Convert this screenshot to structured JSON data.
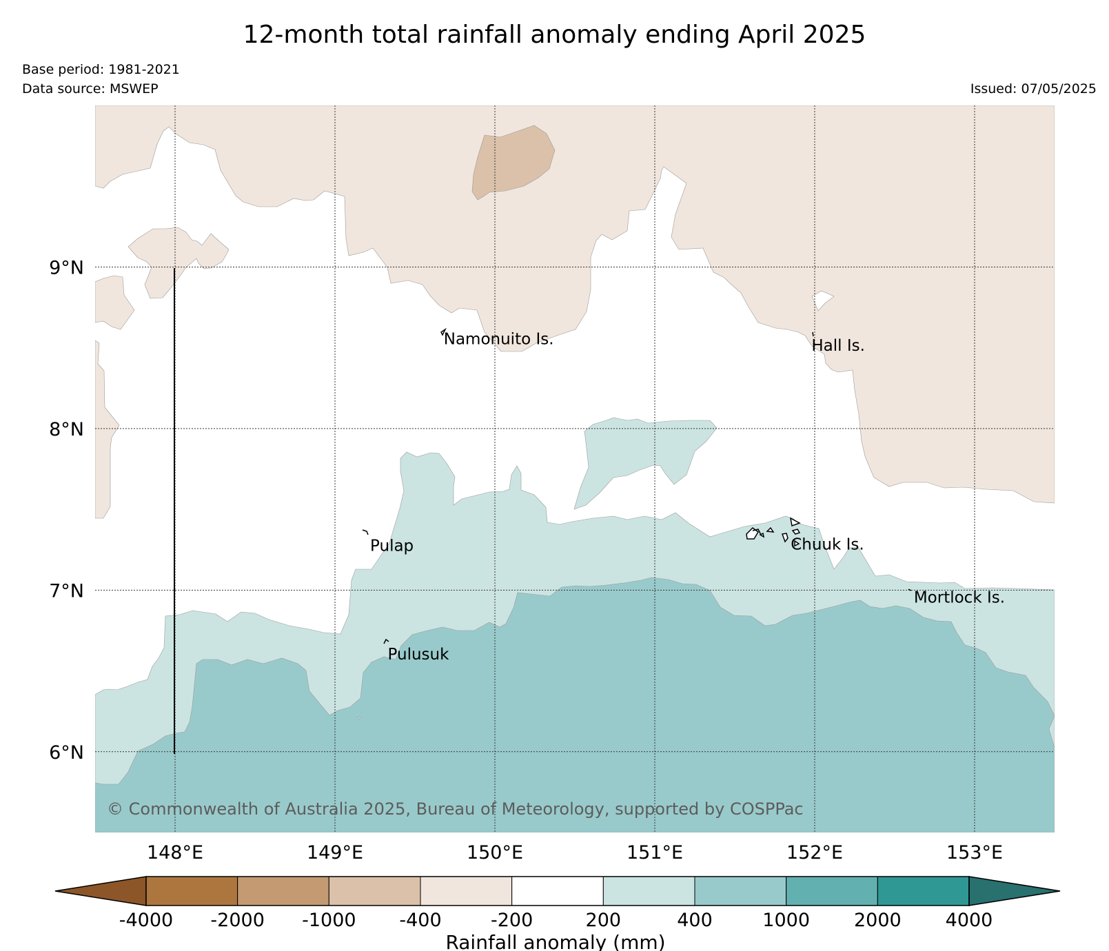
{
  "title": "12-month total rainfall anomaly ending April 2025",
  "base_period": "Base period: 1981-2021",
  "data_source": "Data source: MSWEP",
  "issued": "Issued: 07/05/2025",
  "copyright": "© Commonwealth of Australia 2025, Bureau of Meteorology, supported by COSPPac",
  "map": {
    "lon_range": [
      147.5,
      153.5
    ],
    "lat_range": [
      5.5,
      10.0
    ],
    "lon_ticks": [
      {
        "value": 148,
        "label": "148°E"
      },
      {
        "value": 149,
        "label": "149°E"
      },
      {
        "value": 150,
        "label": "150°E"
      },
      {
        "value": 151,
        "label": "151°E"
      },
      {
        "value": 152,
        "label": "152°E"
      },
      {
        "value": 153,
        "label": "153°E"
      }
    ],
    "lat_ticks": [
      {
        "value": 9,
        "label": "9°N"
      },
      {
        "value": 8,
        "label": "8°N"
      },
      {
        "value": 7,
        "label": "7°N"
      },
      {
        "value": 6,
        "label": "6°N"
      }
    ],
    "grid": true,
    "places": [
      {
        "name": "Namonuito Is.",
        "lon": 149.68,
        "lat": 8.56
      },
      {
        "name": "Hall Is.",
        "lon": 151.98,
        "lat": 8.52
      },
      {
        "name": "Pulap",
        "lon": 149.22,
        "lat": 7.28
      },
      {
        "name": "Chuuk Is.",
        "lon": 151.85,
        "lat": 7.29
      },
      {
        "name": "Mortlock Is.",
        "lon": 152.62,
        "lat": 6.96
      },
      {
        "name": "Pulusuk",
        "lon": 149.33,
        "lat": 6.61
      }
    ]
  },
  "colorbar": {
    "label": "Rainfall anomaly (mm)",
    "ticks": [
      "-4000",
      "-2000",
      "-1000",
      "-400",
      "-200",
      "200",
      "400",
      "1000",
      "2000",
      "4000"
    ],
    "colors": {
      "under": "#8c5628",
      "bins": [
        "#ad763f",
        "#c39a72",
        "#dbc1a9",
        "#f0e6dd",
        "#ffffff",
        "#cbe4e2",
        "#99cacb",
        "#63b0b0",
        "#2f9895"
      ],
      "over": "#28716f"
    }
  }
}
